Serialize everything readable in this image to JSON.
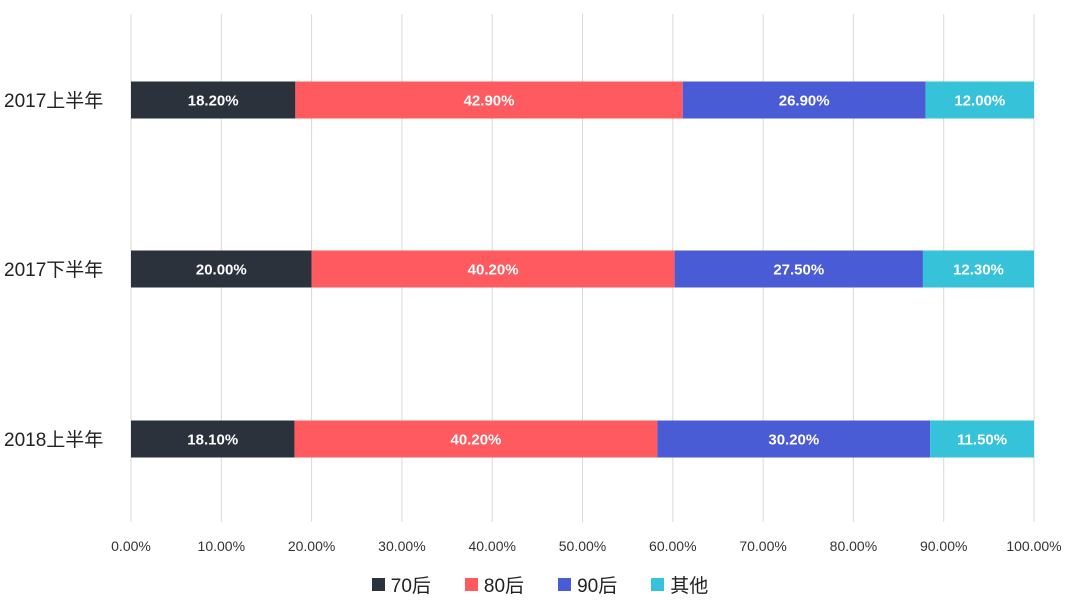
{
  "chart_data": {
    "type": "bar",
    "orientation": "horizontal",
    "stacked": true,
    "categories": [
      "2017上半年",
      "2017下半年",
      "2018上半年"
    ],
    "series": [
      {
        "name": "70后",
        "color": "#2b323c",
        "values": [
          18.2,
          20.0,
          18.1
        ],
        "labels": [
          "18.20%",
          "20.00%",
          "18.10%"
        ]
      },
      {
        "name": "80后",
        "color": "#ff5a5f",
        "values": [
          42.9,
          40.2,
          40.2
        ],
        "labels": [
          "42.90%",
          "40.20%",
          "40.20%"
        ]
      },
      {
        "name": "90后",
        "color": "#4a5bd6",
        "values": [
          26.9,
          27.5,
          30.2
        ],
        "labels": [
          "26.90%",
          "27.50%",
          "30.20%"
        ]
      },
      {
        "name": "其他",
        "color": "#36c2d8",
        "values": [
          12.0,
          12.3,
          11.5
        ],
        "labels": [
          "12.00%",
          "12.30%",
          "11.50%"
        ]
      }
    ],
    "xlim": [
      0,
      100
    ],
    "x_ticks": [
      "0.00%",
      "10.00%",
      "20.00%",
      "30.00%",
      "40.00%",
      "50.00%",
      "60.00%",
      "70.00%",
      "80.00%",
      "90.00%",
      "100.00%"
    ],
    "grid": true,
    "legend_position": "bottom",
    "title": "",
    "xlabel": "",
    "ylabel": ""
  }
}
